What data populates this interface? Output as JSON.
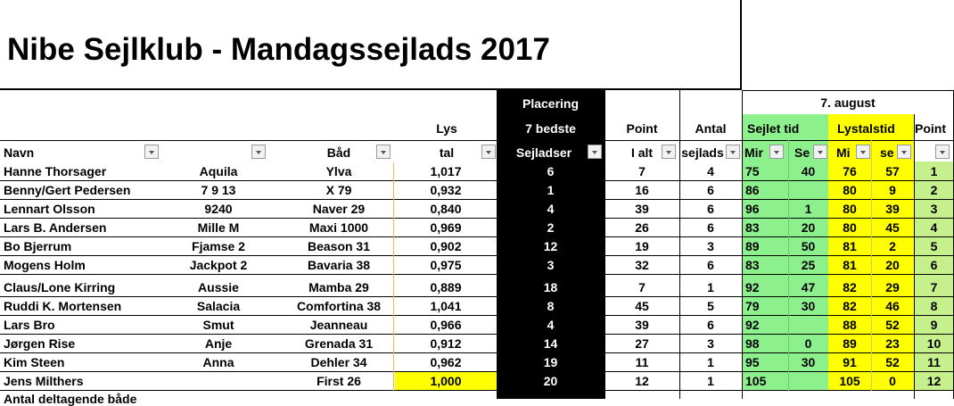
{
  "title": "Nibe Sejlklub - Mandagssejlads 2017",
  "headers": {
    "lys_top": "Lys",
    "placering_1": "Placering",
    "placering_2": "7 bedste",
    "point_top": "Point",
    "antal_top": "Antal",
    "date": "7. august",
    "sejlet_tid": "Sejlet tid",
    "lystalstid": "Lystalstid",
    "point_right": "Point",
    "navn": "Navn",
    "baad": "Båd",
    "lys_tal": "tal",
    "sejladser": "Sejladser",
    "i_alt": "I alt",
    "sejlads": "sejlads",
    "min1": "Mir",
    "sek1": "Se",
    "min2": "Mi",
    "sek2": "se"
  },
  "rows": [
    {
      "navn": "Hanne Thorsager",
      "nr": "Aquila",
      "baad": "Ylva",
      "lystal": "1,017",
      "plac": "6",
      "point": "7",
      "antal": "4",
      "smin": "75",
      "ssek": "40",
      "lmin": "76",
      "lsek": "57",
      "p": "1"
    },
    {
      "navn": "Benny/Gert Pedersen",
      "nr": "7 9 13",
      "baad": "X 79",
      "lystal": "0,932",
      "plac": "1",
      "point": "16",
      "antal": "6",
      "smin": "86",
      "ssek": "",
      "lmin": "80",
      "lsek": "9",
      "p": "2"
    },
    {
      "navn": "Lennart Olsson",
      "nr": "9240",
      "baad": "Naver 29",
      "lystal": "0,840",
      "plac": "4",
      "point": "39",
      "antal": "6",
      "smin": "96",
      "ssek": "1",
      "lmin": "80",
      "lsek": "39",
      "p": "3"
    },
    {
      "navn": "Lars B. Andersen",
      "nr": "Mille M",
      "baad": "Maxi 1000",
      "lystal": "0,969",
      "plac": "2",
      "point": "26",
      "antal": "6",
      "smin": "83",
      "ssek": "20",
      "lmin": "80",
      "lsek": "45",
      "p": "4"
    },
    {
      "navn": "Bo Bjerrum",
      "nr": "Fjamse 2",
      "baad": "Beason 31",
      "lystal": "0,902",
      "plac": "12",
      "point": "19",
      "antal": "3",
      "smin": "89",
      "ssek": "50",
      "lmin": "81",
      "lsek": "2",
      "p": "5"
    },
    {
      "navn": "Mogens Holm",
      "nr": "Jackpot 2",
      "baad": "Bavaria 38",
      "lystal": "0,975",
      "plac": "3",
      "point": "32",
      "antal": "6",
      "smin": "83",
      "ssek": "25",
      "lmin": "81",
      "lsek": "20",
      "p": "6"
    },
    {
      "navn": "Claus/Lone Kirring",
      "nr": "Aussie",
      "baad": "Mamba 29",
      "lystal": "0,889",
      "plac": "18",
      "point": "7",
      "antal": "1",
      "smin": "92",
      "ssek": "47",
      "lmin": "82",
      "lsek": "29",
      "p": "7"
    },
    {
      "navn": "Ruddi K. Mortensen",
      "nr": "Salacia",
      "baad": "Comfortina 38",
      "lystal": "1,041",
      "plac": "8",
      "point": "45",
      "antal": "5",
      "smin": "79",
      "ssek": "30",
      "lmin": "82",
      "lsek": "46",
      "p": "8"
    },
    {
      "navn": "Lars Bro",
      "nr": "Smut",
      "baad": "Jeanneau",
      "lystal": "0,966",
      "plac": "4",
      "point": "39",
      "antal": "6",
      "smin": "92",
      "ssek": "",
      "lmin": "88",
      "lsek": "52",
      "p": "9"
    },
    {
      "navn": "Jørgen Rise",
      "nr": "Anje",
      "baad": "Grenada 31",
      "lystal": "0,912",
      "plac": "14",
      "point": "27",
      "antal": "3",
      "smin": "98",
      "ssek": "0",
      "lmin": "89",
      "lsek": "23",
      "p": "10"
    },
    {
      "navn": "Kim Steen",
      "nr": "Anna",
      "baad": "Dehler 34",
      "lystal": "0,962",
      "plac": "19",
      "point": "11",
      "antal": "1",
      "smin": "95",
      "ssek": "30",
      "lmin": "91",
      "lsek": "52",
      "p": "11"
    },
    {
      "navn": "Jens Milthers",
      "nr": "",
      "baad": "First 26",
      "lystal": "1,000",
      "plac": "20",
      "point": "12",
      "antal": "1",
      "smin": "105",
      "ssek": "",
      "lmin": "105",
      "lsek": "0",
      "p": "12"
    }
  ],
  "footer": "Antal deltagende både",
  "colors": {
    "green": "#8cf08c",
    "yellow": "#ffff00",
    "lightgreen": "#c6f08c",
    "black": "#000000",
    "orange": "#f5b84a"
  }
}
